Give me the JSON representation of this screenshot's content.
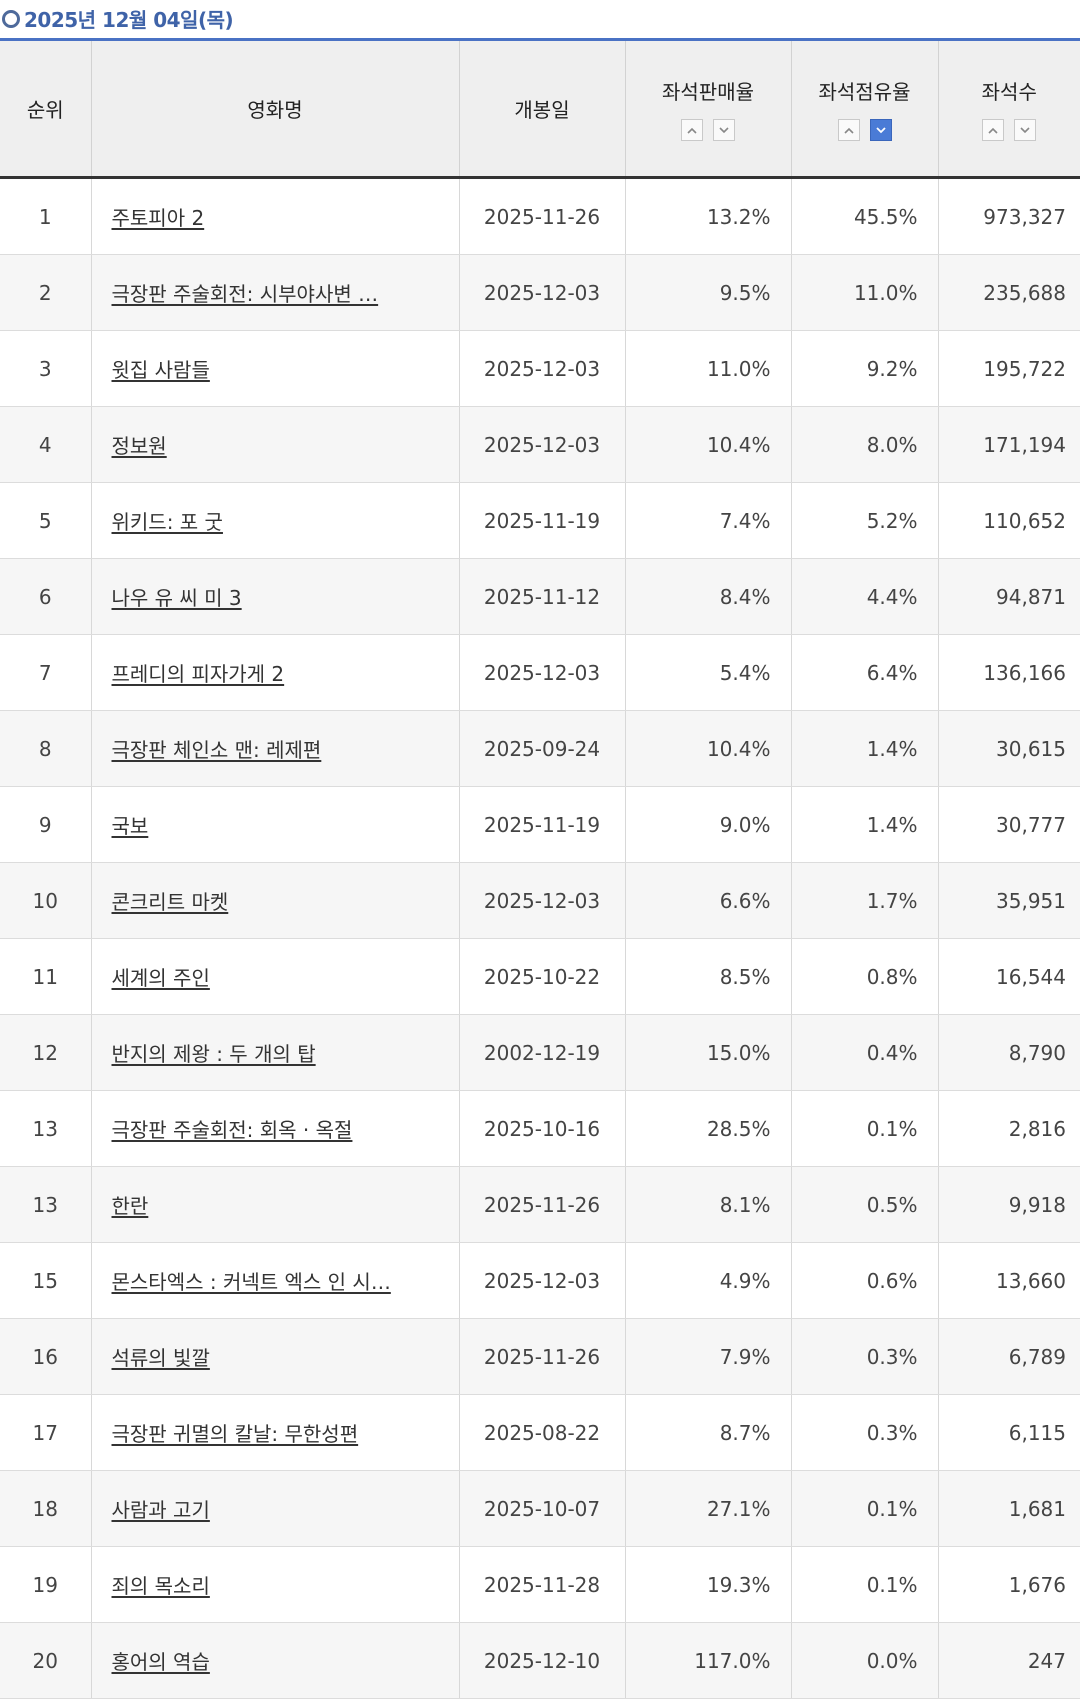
{
  "header": {
    "date": "2025년 12월 04일(목)"
  },
  "columns": {
    "rank": "순위",
    "title": "영화명",
    "release": "개봉일",
    "sales_rate": "좌석판매율",
    "share": "좌석점유율",
    "seats": "좌석수"
  },
  "sort": {
    "active": "share-desc"
  },
  "colors": {
    "accent": "#4a72c4",
    "date_text": "#3f63a8",
    "active_sort": "#4a7bd6"
  },
  "rows": [
    {
      "rank": "1",
      "title": "주토피아 2",
      "release": "2025-11-26",
      "sales_rate": "13.2%",
      "share": "45.5%",
      "seats": "973,327"
    },
    {
      "rank": "2",
      "title": "극장판 주술회전: 시부야사변 …",
      "release": "2025-12-03",
      "sales_rate": "9.5%",
      "share": "11.0%",
      "seats": "235,688"
    },
    {
      "rank": "3",
      "title": "윗집 사람들",
      "release": "2025-12-03",
      "sales_rate": "11.0%",
      "share": "9.2%",
      "seats": "195,722"
    },
    {
      "rank": "4",
      "title": "정보원",
      "release": "2025-12-03",
      "sales_rate": "10.4%",
      "share": "8.0%",
      "seats": "171,194"
    },
    {
      "rank": "5",
      "title": "위키드: 포 굿",
      "release": "2025-11-19",
      "sales_rate": "7.4%",
      "share": "5.2%",
      "seats": "110,652"
    },
    {
      "rank": "6",
      "title": "나우 유 씨 미 3",
      "release": "2025-11-12",
      "sales_rate": "8.4%",
      "share": "4.4%",
      "seats": "94,871"
    },
    {
      "rank": "7",
      "title": "프레디의 피자가게 2",
      "release": "2025-12-03",
      "sales_rate": "5.4%",
      "share": "6.4%",
      "seats": "136,166"
    },
    {
      "rank": "8",
      "title": "극장판 체인소 맨: 레제편",
      "release": "2025-09-24",
      "sales_rate": "10.4%",
      "share": "1.4%",
      "seats": "30,615"
    },
    {
      "rank": "9",
      "title": "국보",
      "release": "2025-11-19",
      "sales_rate": "9.0%",
      "share": "1.4%",
      "seats": "30,777"
    },
    {
      "rank": "10",
      "title": "콘크리트 마켓",
      "release": "2025-12-03",
      "sales_rate": "6.6%",
      "share": "1.7%",
      "seats": "35,951"
    },
    {
      "rank": "11",
      "title": "세계의 주인",
      "release": "2025-10-22",
      "sales_rate": "8.5%",
      "share": "0.8%",
      "seats": "16,544"
    },
    {
      "rank": "12",
      "title": "반지의 제왕 : 두 개의 탑",
      "release": "2002-12-19",
      "sales_rate": "15.0%",
      "share": "0.4%",
      "seats": "8,790"
    },
    {
      "rank": "13",
      "title": "극장판 주술회전: 회옥 · 옥절",
      "release": "2025-10-16",
      "sales_rate": "28.5%",
      "share": "0.1%",
      "seats": "2,816"
    },
    {
      "rank": "13",
      "title": "한란",
      "release": "2025-11-26",
      "sales_rate": "8.1%",
      "share": "0.5%",
      "seats": "9,918"
    },
    {
      "rank": "15",
      "title": "몬스타엑스 : 커넥트 엑스 인 시…",
      "release": "2025-12-03",
      "sales_rate": "4.9%",
      "share": "0.6%",
      "seats": "13,660"
    },
    {
      "rank": "16",
      "title": "석류의 빛깔",
      "release": "2025-11-26",
      "sales_rate": "7.9%",
      "share": "0.3%",
      "seats": "6,789"
    },
    {
      "rank": "17",
      "title": "극장판 귀멸의 칼날: 무한성편",
      "release": "2025-08-22",
      "sales_rate": "8.7%",
      "share": "0.3%",
      "seats": "6,115"
    },
    {
      "rank": "18",
      "title": "사람과 고기",
      "release": "2025-10-07",
      "sales_rate": "27.1%",
      "share": "0.1%",
      "seats": "1,681"
    },
    {
      "rank": "19",
      "title": "죄의 목소리",
      "release": "2025-11-28",
      "sales_rate": "19.3%",
      "share": "0.1%",
      "seats": "1,676"
    },
    {
      "rank": "20",
      "title": "홍어의 역습",
      "release": "2025-12-10",
      "sales_rate": "117.0%",
      "share": "0.0%",
      "seats": "247"
    }
  ]
}
